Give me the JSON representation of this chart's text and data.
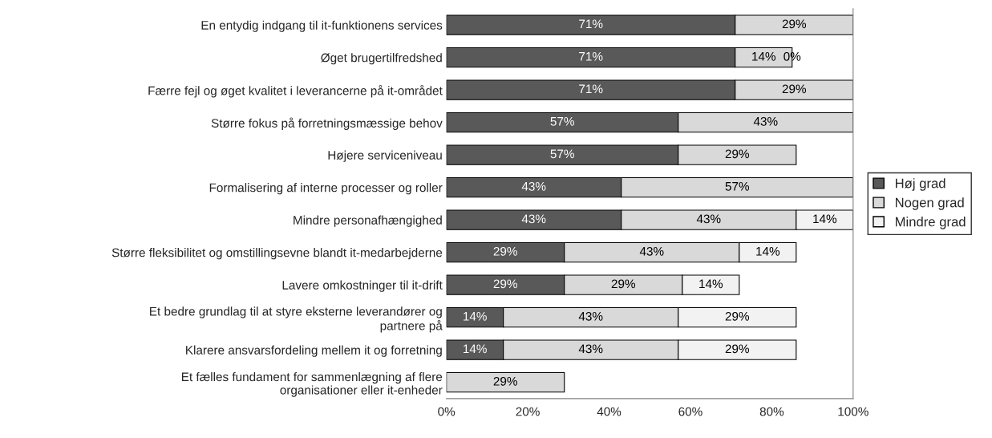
{
  "chart_data": {
    "type": "bar",
    "orientation": "horizontal",
    "stacked": true,
    "categories": [
      "En entydig indgang til it-funktionens services",
      "Øget brugertilfredshed",
      "Færre fejl og øget kvalitet i leverancerne på it-området",
      "Større fokus på forretningsmæssige behov",
      "Højere serviceniveau",
      "Formalisering af interne processer og roller",
      "Mindre personafhængighed",
      "Større fleksibilitet og omstillingsevne blandt it-medarbejderne",
      "Lavere omkostninger til it-drift",
      "Et bedre grundlag til at styre eksterne leverandører og\npartnere på",
      "Klarere ansvarsfordeling mellem it og forretning",
      "Et fælles fundament for sammenlægning af flere\norganisationer eller it-enheder"
    ],
    "series": [
      {
        "name": "Høj grad",
        "color": "#595959",
        "values": [
          71,
          71,
          71,
          57,
          57,
          43,
          43,
          29,
          29,
          14,
          14,
          null
        ],
        "value_labels": [
          "71%",
          "71%",
          "71%",
          "57%",
          "57%",
          "43%",
          "43%",
          "29%",
          "29%",
          "14%",
          "14%",
          null
        ]
      },
      {
        "name": "Nogen grad",
        "color": "#d9d9d9",
        "values": [
          29,
          14,
          29,
          43,
          29,
          57,
          43,
          43,
          29,
          43,
          43,
          29
        ],
        "value_labels": [
          "29%",
          "14%",
          "29%",
          "43%",
          "29%",
          "57%",
          "43%",
          "43%",
          "29%",
          "43%",
          "43%",
          "29%"
        ]
      },
      {
        "name": "Mindre grad",
        "color": "#f2f2f2",
        "values": [
          null,
          0,
          null,
          null,
          null,
          null,
          14,
          14,
          14,
          29,
          29,
          null
        ],
        "value_labels": [
          null,
          "0%",
          null,
          null,
          null,
          null,
          "14%",
          "14%",
          "14%",
          "29%",
          "29%",
          null
        ]
      }
    ],
    "xlim": [
      0,
      100
    ],
    "xticks": [
      {
        "value": 0,
        "label": "0%"
      },
      {
        "value": 20,
        "label": "20%"
      },
      {
        "value": 40,
        "label": "40%"
      },
      {
        "value": 60,
        "label": "60%"
      },
      {
        "value": 80,
        "label": "80%"
      },
      {
        "value": 100,
        "label": "100%"
      }
    ],
    "legend": "right",
    "grid": false
  }
}
